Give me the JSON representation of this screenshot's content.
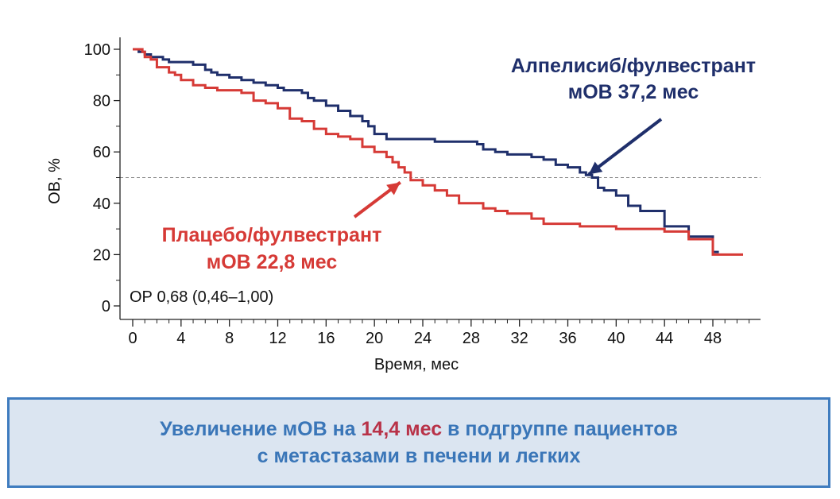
{
  "chart_data": {
    "type": "line",
    "xlabel": "Время, мес",
    "ylabel": "ОВ, %",
    "xlim": [
      -1,
      52
    ],
    "ylim": [
      -5,
      105
    ],
    "x_ticks": [
      "0",
      "4",
      "8",
      "12",
      "16",
      "20",
      "24",
      "28",
      "32",
      "36",
      "40",
      "44",
      "48"
    ],
    "y_ticks": [
      "0",
      "20",
      "40",
      "60",
      "80",
      "100"
    ],
    "reference_line_y": 50,
    "hazard_ratio_text": "ОР 0,68 (0,46–1,00)",
    "series": [
      {
        "name": "Алпелисиб/фулвестрант",
        "color": "#1f2f6b",
        "median_label": "мОВ 37,2 мес",
        "x": [
          0,
          0.5,
          1,
          1.5,
          2,
          2.5,
          3,
          4,
          5,
          6,
          6.5,
          7,
          8,
          9,
          10,
          11,
          12,
          12.5,
          13,
          14,
          14.5,
          15,
          16,
          17,
          18,
          19,
          19.5,
          20,
          21,
          22,
          24,
          25,
          28,
          28.5,
          29,
          30,
          31,
          32,
          33,
          34,
          35,
          36,
          37,
          37.5,
          38,
          38.5,
          39,
          40,
          41,
          42,
          43,
          44,
          46,
          48
        ],
        "y": [
          100,
          99,
          98,
          97,
          97,
          96,
          95,
          95,
          94,
          92,
          91,
          90,
          89,
          88,
          87,
          86,
          85,
          84,
          84,
          83,
          81,
          80,
          78,
          76,
          74,
          72,
          70,
          67,
          65,
          65,
          65,
          64,
          64,
          63,
          61,
          60,
          59,
          59,
          58,
          57,
          55,
          54,
          52,
          51,
          50,
          46,
          45,
          43,
          39,
          37,
          37,
          31,
          27,
          21
        ]
      },
      {
        "name": "Плацебо/фулвестрант",
        "color": "#d63a36",
        "median_label": "мОВ 22,8 мес",
        "x": [
          0,
          0.8,
          1,
          1.5,
          2,
          3,
          3.5,
          4,
          5,
          6,
          7,
          8,
          9,
          10,
          11,
          12,
          13,
          14,
          15,
          16,
          17,
          18,
          19,
          20,
          21,
          21.5,
          22,
          22.5,
          23,
          24,
          25,
          26,
          27,
          29,
          30,
          31,
          33,
          34,
          36,
          37,
          38,
          40,
          42,
          44,
          46,
          48,
          50.5
        ],
        "y": [
          100,
          99,
          97,
          96,
          93,
          91,
          90,
          88,
          86,
          85,
          84,
          84,
          83,
          80,
          79,
          77,
          73,
          72,
          69,
          67,
          66,
          65,
          62,
          60,
          58,
          56,
          54,
          52,
          49,
          47,
          45,
          43,
          40,
          38,
          37,
          36,
          34,
          32,
          32,
          31,
          31,
          30,
          30,
          29,
          26,
          20,
          20
        ]
      }
    ]
  },
  "banner": {
    "line1_pre": "Увеличение мОВ на ",
    "line1_highlight": "14,4 мес",
    "line1_post": " в подгруппе пациентов",
    "line2": "с метастазами в печени и легких"
  }
}
